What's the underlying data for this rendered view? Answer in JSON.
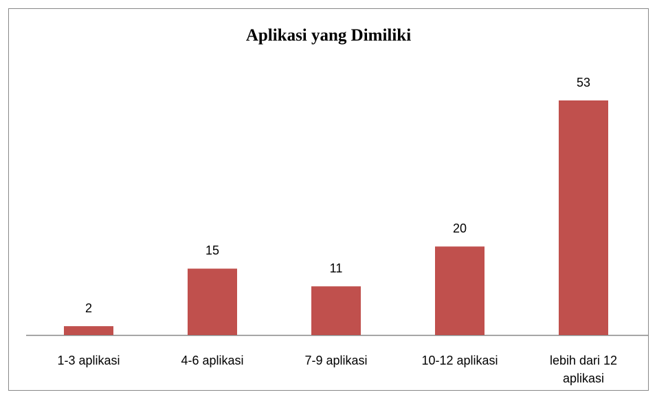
{
  "chart_data": {
    "type": "bar",
    "title": "Aplikasi yang Dimiliki",
    "categories": [
      "1-3 aplikasi",
      "4-6 aplikasi",
      "7-9 aplikasi",
      "10-12 aplikasi",
      "lebih dari 12 aplikasi"
    ],
    "values": [
      2,
      15,
      11,
      20,
      53
    ],
    "color": "#c0504d"
  }
}
